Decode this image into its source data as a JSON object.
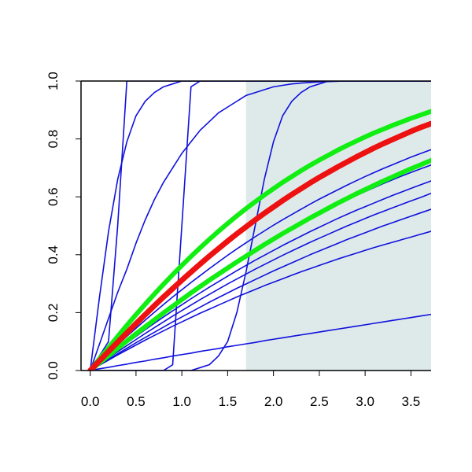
{
  "chart_data": {
    "type": "line",
    "title": "",
    "xlabel": "",
    "ylabel": "",
    "xlim": [
      -0.1,
      3.72
    ],
    "ylim": [
      0.0,
      1.0
    ],
    "grid": false,
    "x_ticks": [
      "0.0",
      "0.5",
      "1.0",
      "1.5",
      "2.0",
      "2.5",
      "3.0",
      "3.5"
    ],
    "y_ticks": [
      "0.0",
      "0.2",
      "0.4",
      "0.6",
      "0.8",
      "1.0"
    ],
    "shaded_region": {
      "x_start": 1.7,
      "x_end": 3.72,
      "color": "#deeaea"
    },
    "colors": {
      "thin": "#1010dd",
      "median": "#ee1111",
      "band": "#11ee11",
      "axis": "#000000"
    },
    "x": [
      0,
      0.1,
      0.2,
      0.3,
      0.4,
      0.5,
      0.6,
      0.7,
      0.8,
      0.9,
      1.0,
      1.1,
      1.2,
      1.3,
      1.4,
      1.5,
      1.6,
      1.7,
      1.8,
      1.9,
      2.0,
      2.1,
      2.2,
      2.3,
      2.4,
      2.5,
      2.6,
      2.7,
      2.8,
      2.9,
      3.0,
      3.1,
      3.2,
      3.3,
      3.4,
      3.5,
      3.6,
      3.72
    ],
    "series": [
      {
        "style": "median",
        "values": [
          0.0,
          0.033,
          0.066,
          0.098,
          0.13,
          0.162,
          0.193,
          0.224,
          0.254,
          0.283,
          0.312,
          0.34,
          0.368,
          0.395,
          0.421,
          0.447,
          0.472,
          0.496,
          0.52,
          0.543,
          0.565,
          0.587,
          0.608,
          0.628,
          0.648,
          0.667,
          0.685,
          0.703,
          0.72,
          0.737,
          0.753,
          0.769,
          0.784,
          0.798,
          0.812,
          0.826,
          0.839,
          0.853
        ]
      },
      {
        "style": "band",
        "values": [
          0.0,
          0.04,
          0.079,
          0.118,
          0.156,
          0.193,
          0.229,
          0.264,
          0.298,
          0.331,
          0.363,
          0.394,
          0.424,
          0.453,
          0.481,
          0.508,
          0.534,
          0.559,
          0.583,
          0.606,
          0.628,
          0.65,
          0.67,
          0.69,
          0.709,
          0.727,
          0.744,
          0.761,
          0.777,
          0.792,
          0.807,
          0.821,
          0.834,
          0.847,
          0.859,
          0.871,
          0.882,
          0.895
        ]
      },
      {
        "style": "band",
        "values": [
          0.0,
          0.026,
          0.051,
          0.077,
          0.102,
          0.127,
          0.151,
          0.175,
          0.199,
          0.222,
          0.245,
          0.268,
          0.29,
          0.312,
          0.333,
          0.354,
          0.375,
          0.395,
          0.415,
          0.435,
          0.454,
          0.473,
          0.491,
          0.509,
          0.527,
          0.544,
          0.561,
          0.578,
          0.594,
          0.61,
          0.625,
          0.64,
          0.655,
          0.669,
          0.683,
          0.697,
          0.71,
          0.726
        ]
      },
      {
        "style": "thin",
        "values": [
          0.0,
          0.05,
          0.1,
          0.5,
          1.0,
          1.0,
          1.0,
          1.0,
          1.0,
          1.0,
          1.0,
          1.0,
          1.0,
          1.0,
          1.0,
          1.0,
          1.0,
          1.0,
          1.0,
          1.0,
          1.0,
          1.0,
          1.0,
          1.0,
          1.0,
          1.0,
          1.0,
          1.0,
          1.0,
          1.0,
          1.0,
          1.0,
          1.0,
          1.0,
          1.0,
          1.0,
          1.0,
          1.0
        ]
      },
      {
        "style": "thin",
        "values": [
          0.0,
          0.25,
          0.48,
          0.66,
          0.79,
          0.88,
          0.93,
          0.96,
          0.98,
          0.99,
          1.0,
          1.0,
          1.0,
          1.0,
          1.0,
          1.0,
          1.0,
          1.0,
          1.0,
          1.0,
          1.0,
          1.0,
          1.0,
          1.0,
          1.0,
          1.0,
          1.0,
          1.0,
          1.0,
          1.0,
          1.0,
          1.0,
          1.0,
          1.0,
          1.0,
          1.0,
          1.0,
          1.0
        ]
      },
      {
        "style": "thin",
        "values": [
          0.0,
          0.0,
          0.0,
          0.0,
          0.0,
          0.0,
          0.0,
          0.0,
          0.0,
          0.02,
          0.5,
          0.98,
          1.0,
          1.0,
          1.0,
          1.0,
          1.0,
          1.0,
          1.0,
          1.0,
          1.0,
          1.0,
          1.0,
          1.0,
          1.0,
          1.0,
          1.0,
          1.0,
          1.0,
          1.0,
          1.0,
          1.0,
          1.0,
          1.0,
          1.0,
          1.0,
          1.0,
          1.0
        ]
      },
      {
        "style": "thin",
        "values": [
          0.0,
          0.09,
          0.18,
          0.27,
          0.35,
          0.44,
          0.52,
          0.59,
          0.65,
          0.7,
          0.75,
          0.79,
          0.83,
          0.86,
          0.89,
          0.91,
          0.93,
          0.95,
          0.96,
          0.97,
          0.98,
          0.985,
          0.99,
          0.993,
          0.995,
          0.997,
          0.998,
          0.999,
          1.0,
          1.0,
          1.0,
          1.0,
          1.0,
          1.0,
          1.0,
          1.0,
          1.0,
          1.0
        ]
      },
      {
        "style": "thin",
        "values": [
          0.0,
          0.0,
          0.0,
          0.0,
          0.0,
          0.0,
          0.0,
          0.0,
          0.0,
          0.0,
          0.0,
          0.0,
          0.01,
          0.02,
          0.05,
          0.1,
          0.2,
          0.34,
          0.5,
          0.66,
          0.79,
          0.88,
          0.93,
          0.96,
          0.98,
          0.99,
          1.0,
          1.0,
          1.0,
          1.0,
          1.0,
          1.0,
          1.0,
          1.0,
          1.0,
          1.0,
          1.0,
          1.0
        ]
      },
      {
        "style": "thin",
        "values": [
          0.0,
          0.03,
          0.06,
          0.089,
          0.118,
          0.146,
          0.174,
          0.201,
          0.228,
          0.254,
          0.279,
          0.304,
          0.328,
          0.352,
          0.375,
          0.398,
          0.42,
          0.441,
          0.462,
          0.482,
          0.502,
          0.521,
          0.539,
          0.557,
          0.575,
          0.592,
          0.608,
          0.624,
          0.64,
          0.655,
          0.67,
          0.684,
          0.698,
          0.711,
          0.724,
          0.737,
          0.749,
          0.763
        ]
      },
      {
        "style": "thin",
        "values": [
          0.0,
          0.027,
          0.054,
          0.08,
          0.106,
          0.131,
          0.156,
          0.181,
          0.205,
          0.229,
          0.252,
          0.275,
          0.297,
          0.319,
          0.34,
          0.361,
          0.381,
          0.401,
          0.42,
          0.439,
          0.457,
          0.475,
          0.493,
          0.51,
          0.527,
          0.543,
          0.559,
          0.574,
          0.589,
          0.604,
          0.618,
          0.632,
          0.646,
          0.659,
          0.672,
          0.684,
          0.696,
          0.71
        ]
      },
      {
        "style": "thin",
        "values": [
          0.0,
          0.024,
          0.048,
          0.072,
          0.095,
          0.118,
          0.141,
          0.163,
          0.185,
          0.206,
          0.227,
          0.248,
          0.268,
          0.288,
          0.307,
          0.326,
          0.345,
          0.363,
          0.381,
          0.398,
          0.415,
          0.432,
          0.448,
          0.464,
          0.48,
          0.495,
          0.51,
          0.525,
          0.539,
          0.553,
          0.566,
          0.579,
          0.592,
          0.605,
          0.617,
          0.629,
          0.641,
          0.655
        ]
      },
      {
        "style": "thin",
        "values": [
          0.0,
          0.022,
          0.044,
          0.065,
          0.086,
          0.107,
          0.128,
          0.148,
          0.168,
          0.188,
          0.207,
          0.226,
          0.245,
          0.263,
          0.281,
          0.299,
          0.316,
          0.333,
          0.35,
          0.366,
          0.382,
          0.398,
          0.413,
          0.428,
          0.443,
          0.457,
          0.471,
          0.485,
          0.499,
          0.512,
          0.525,
          0.538,
          0.55,
          0.562,
          0.574,
          0.586,
          0.597,
          0.612
        ]
      },
      {
        "style": "thin",
        "values": [
          0.0,
          0.02,
          0.039,
          0.058,
          0.077,
          0.096,
          0.114,
          0.132,
          0.15,
          0.168,
          0.185,
          0.202,
          0.219,
          0.236,
          0.252,
          0.268,
          0.284,
          0.299,
          0.314,
          0.329,
          0.344,
          0.358,
          0.372,
          0.386,
          0.4,
          0.413,
          0.426,
          0.439,
          0.452,
          0.464,
          0.476,
          0.488,
          0.5,
          0.511,
          0.522,
          0.533,
          0.544,
          0.557
        ]
      },
      {
        "style": "thin",
        "values": [
          0.0,
          0.018,
          0.036,
          0.054,
          0.071,
          0.088,
          0.105,
          0.121,
          0.137,
          0.153,
          0.168,
          0.183,
          0.198,
          0.212,
          0.226,
          0.24,
          0.254,
          0.267,
          0.28,
          0.293,
          0.305,
          0.317,
          0.329,
          0.341,
          0.352,
          0.363,
          0.374,
          0.385,
          0.395,
          0.405,
          0.415,
          0.425,
          0.434,
          0.443,
          0.452,
          0.461,
          0.47,
          0.481
        ]
      },
      {
        "style": "thin",
        "values": [
          0.0,
          0.006,
          0.011,
          0.017,
          0.022,
          0.028,
          0.033,
          0.039,
          0.044,
          0.05,
          0.055,
          0.06,
          0.066,
          0.071,
          0.076,
          0.082,
          0.087,
          0.092,
          0.097,
          0.103,
          0.108,
          0.113,
          0.118,
          0.123,
          0.128,
          0.133,
          0.138,
          0.143,
          0.148,
          0.153,
          0.158,
          0.163,
          0.168,
          0.173,
          0.178,
          0.183,
          0.188,
          0.194
        ]
      }
    ]
  }
}
